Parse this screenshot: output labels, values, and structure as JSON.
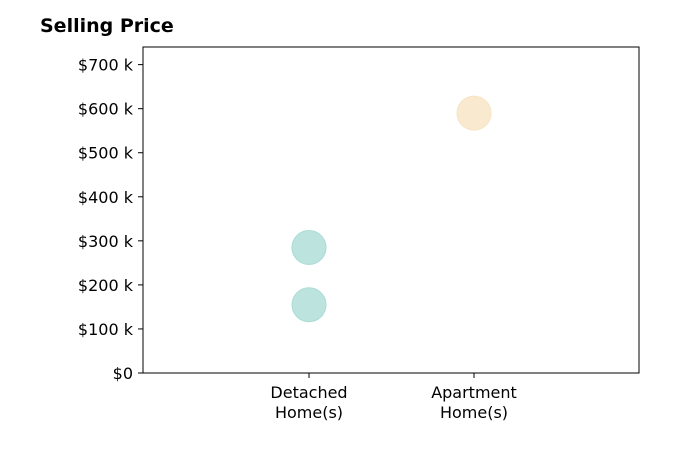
{
  "chart_data": {
    "type": "scatter",
    "title": "Selling Price",
    "xlabel": "",
    "ylabel": "",
    "categories": [
      "Detached\nHome(s)",
      "Apartment\nHome(s)"
    ],
    "y_ticks": [
      "$0",
      "$100 k",
      "$200 k",
      "$300 k",
      "$400 k",
      "$500 k",
      "$600 k",
      "$700 k"
    ],
    "ylim": [
      0,
      740000
    ],
    "grid": false,
    "points": [
      {
        "category_index": 0,
        "value": 155000,
        "color": "#abdcd6"
      },
      {
        "category_index": 0,
        "value": 285000,
        "color": "#abdcd6"
      },
      {
        "category_index": 1,
        "value": 590000,
        "color": "#f6e4c3"
      }
    ]
  }
}
